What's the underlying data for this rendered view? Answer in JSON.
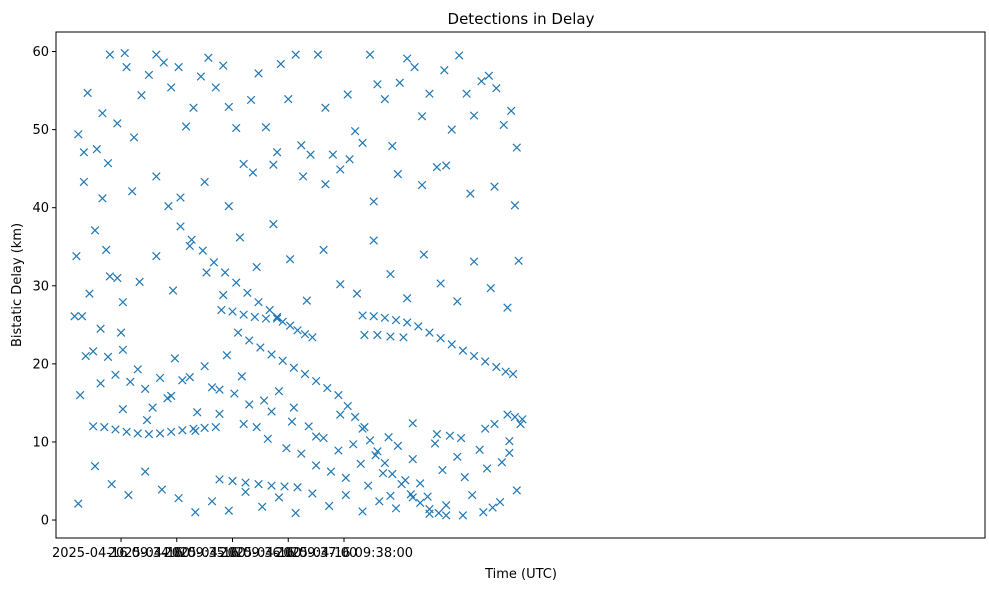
{
  "chart_data": {
    "type": "scatter",
    "title": "Detections in Delay",
    "xlabel": "Time (UTC)",
    "ylabel": "Bistatic Delay (km)",
    "marker": "x",
    "color": "#1f77b4",
    "grid": false,
    "x_unit": "seconds after 2025-04-16 09:32:50 UTC",
    "xlim": [
      0,
      1000
    ],
    "ylim": [
      -2.3,
      62.5
    ],
    "x_ticks": [
      {
        "value": 70,
        "label": "2025-04-16 09:34:00"
      },
      {
        "value": 130,
        "label": "2025-04-16 09:35:00"
      },
      {
        "value": 190,
        "label": "2025-04-16 09:36:00"
      },
      {
        "value": 250,
        "label": "2025-04-16 09:37:00"
      },
      {
        "value": 310,
        "label": "2025-04-16 09:38:00"
      }
    ],
    "y_ticks": [
      0,
      10,
      20,
      30,
      40,
      50,
      60
    ],
    "series": [
      {
        "values": [
          [
            121,
            40.2
          ],
          [
            134,
            37.6
          ],
          [
            146,
            35.9
          ],
          [
            158,
            34.5
          ],
          [
            170,
            33.0
          ],
          [
            182,
            31.7
          ],
          [
            194,
            30.4
          ],
          [
            206,
            29.1
          ],
          [
            218,
            27.9
          ],
          [
            230,
            26.9
          ],
          [
            238,
            26.0
          ],
          [
            244,
            25.4
          ],
          [
            252,
            24.9
          ],
          [
            260,
            24.3
          ],
          [
            268,
            23.8
          ],
          [
            276,
            23.4
          ],
          [
            178,
            26.9
          ],
          [
            190,
            26.7
          ],
          [
            202,
            26.3
          ],
          [
            214,
            26.0
          ],
          [
            226,
            25.8
          ],
          [
            238,
            25.8
          ],
          [
            196,
            24.0
          ],
          [
            208,
            23.0
          ],
          [
            220,
            22.1
          ],
          [
            232,
            21.2
          ],
          [
            244,
            20.4
          ],
          [
            256,
            19.5
          ],
          [
            268,
            18.7
          ],
          [
            280,
            17.8
          ],
          [
            292,
            16.9
          ],
          [
            304,
            16.0
          ],
          [
            314,
            14.6
          ],
          [
            322,
            13.2
          ],
          [
            330,
            11.7
          ],
          [
            338,
            10.2
          ],
          [
            346,
            8.8
          ],
          [
            354,
            7.3
          ],
          [
            362,
            5.9
          ],
          [
            372,
            4.6
          ],
          [
            382,
            3.3
          ],
          [
            392,
            2.2
          ],
          [
            402,
            1.4
          ],
          [
            412,
            0.9
          ],
          [
            420,
            0.6
          ],
          [
            330,
            26.2
          ],
          [
            342,
            26.1
          ],
          [
            354,
            25.9
          ],
          [
            366,
            25.6
          ],
          [
            378,
            25.3
          ],
          [
            390,
            24.8
          ],
          [
            402,
            24.0
          ],
          [
            414,
            23.3
          ],
          [
            426,
            22.5
          ],
          [
            438,
            21.7
          ],
          [
            450,
            21.0
          ],
          [
            462,
            20.3
          ],
          [
            474,
            19.6
          ],
          [
            484,
            19.0
          ],
          [
            492,
            18.7
          ],
          [
            332,
            23.7
          ],
          [
            346,
            23.7
          ],
          [
            360,
            23.5
          ],
          [
            374,
            23.4
          ],
          [
            40,
            12.0
          ],
          [
            52,
            11.9
          ],
          [
            64,
            11.6
          ],
          [
            76,
            11.3
          ],
          [
            88,
            11.1
          ],
          [
            100,
            11.0
          ],
          [
            112,
            11.1
          ],
          [
            124,
            11.3
          ],
          [
            136,
            11.5
          ],
          [
            148,
            11.7
          ],
          [
            160,
            11.8
          ],
          [
            172,
            11.9
          ],
          [
            176,
            5.2
          ],
          [
            190,
            5.0
          ],
          [
            204,
            4.8
          ],
          [
            218,
            4.6
          ],
          [
            232,
            4.4
          ],
          [
            246,
            4.3
          ],
          [
            260,
            4.2
          ],
          [
            460,
            1.0
          ],
          [
            470,
            1.6
          ],
          [
            478,
            2.3
          ],
          [
            486,
            13.5
          ],
          [
            494,
            13.2
          ],
          [
            502,
            12.9
          ],
          [
            500,
            12.3
          ],
          [
            20,
            26.1
          ],
          [
            28,
            26.1
          ],
          [
            50,
            41.2
          ],
          [
            58,
            31.2
          ],
          [
            66,
            31.0
          ],
          [
            70,
            24.0
          ],
          [
            22,
            33.8
          ],
          [
            24,
            49.4
          ],
          [
            30,
            47.1
          ],
          [
            34,
            54.7
          ],
          [
            42,
            37.1
          ],
          [
            44,
            47.5
          ],
          [
            50,
            52.1
          ],
          [
            58,
            59.6
          ],
          [
            66,
            50.8
          ],
          [
            74,
            59.8
          ],
          [
            76,
            58.0
          ],
          [
            84,
            49.0
          ],
          [
            92,
            54.4
          ],
          [
            100,
            57.0
          ],
          [
            108,
            59.6
          ],
          [
            116,
            58.6
          ],
          [
            124,
            55.4
          ],
          [
            132,
            58.0
          ],
          [
            140,
            50.4
          ],
          [
            148,
            52.8
          ],
          [
            156,
            56.8
          ],
          [
            164,
            59.2
          ],
          [
            172,
            55.4
          ],
          [
            180,
            58.2
          ],
          [
            186,
            52.9
          ],
          [
            194,
            50.2
          ],
          [
            202,
            45.6
          ],
          [
            210,
            53.8
          ],
          [
            218,
            57.2
          ],
          [
            226,
            50.3
          ],
          [
            234,
            45.5
          ],
          [
            242,
            58.4
          ],
          [
            250,
            53.9
          ],
          [
            258,
            59.6
          ],
          [
            266,
            44.0
          ],
          [
            274,
            46.8
          ],
          [
            282,
            59.6
          ],
          [
            290,
            52.8
          ],
          [
            298,
            46.8
          ],
          [
            306,
            44.9
          ],
          [
            314,
            54.5
          ],
          [
            322,
            49.8
          ],
          [
            330,
            48.3
          ],
          [
            338,
            59.6
          ],
          [
            346,
            55.8
          ],
          [
            354,
            53.9
          ],
          [
            362,
            47.9
          ],
          [
            370,
            56.0
          ],
          [
            378,
            59.1
          ],
          [
            386,
            58.0
          ],
          [
            394,
            51.7
          ],
          [
            402,
            54.6
          ],
          [
            410,
            45.2
          ],
          [
            418,
            57.6
          ],
          [
            426,
            50.0
          ],
          [
            434,
            59.5
          ],
          [
            442,
            54.6
          ],
          [
            450,
            51.8
          ],
          [
            458,
            56.2
          ],
          [
            466,
            56.9
          ],
          [
            474,
            55.3
          ],
          [
            482,
            50.6
          ],
          [
            490,
            52.4
          ],
          [
            496,
            47.7
          ],
          [
            32,
            21.0
          ],
          [
            40,
            21.6
          ],
          [
            48,
            24.5
          ],
          [
            56,
            20.9
          ],
          [
            64,
            18.6
          ],
          [
            72,
            21.8
          ],
          [
            80,
            17.7
          ],
          [
            88,
            19.3
          ],
          [
            96,
            16.8
          ],
          [
            104,
            14.4
          ],
          [
            112,
            18.2
          ],
          [
            120,
            15.6
          ],
          [
            128,
            20.7
          ],
          [
            136,
            17.9
          ],
          [
            144,
            18.3
          ],
          [
            152,
            13.8
          ],
          [
            160,
            19.7
          ],
          [
            168,
            17.0
          ],
          [
            176,
            13.6
          ],
          [
            184,
            21.1
          ],
          [
            192,
            16.2
          ],
          [
            200,
            18.4
          ],
          [
            208,
            14.8
          ],
          [
            216,
            11.9
          ],
          [
            224,
            15.3
          ],
          [
            232,
            13.9
          ],
          [
            240,
            16.5
          ],
          [
            248,
            9.2
          ],
          [
            256,
            14.4
          ],
          [
            264,
            8.5
          ],
          [
            272,
            12.0
          ],
          [
            280,
            7.0
          ],
          [
            288,
            10.5
          ],
          [
            296,
            6.2
          ],
          [
            304,
            8.9
          ],
          [
            312,
            5.4
          ],
          [
            320,
            9.7
          ],
          [
            328,
            7.2
          ],
          [
            336,
            4.4
          ],
          [
            344,
            8.3
          ],
          [
            352,
            6.0
          ],
          [
            360,
            3.1
          ],
          [
            368,
            9.5
          ],
          [
            376,
            5.1
          ],
          [
            384,
            7.8
          ],
          [
            392,
            4.7
          ],
          [
            400,
            3.0
          ],
          [
            408,
            9.8
          ],
          [
            416,
            6.4
          ],
          [
            424,
            10.8
          ],
          [
            432,
            8.1
          ],
          [
            440,
            5.5
          ],
          [
            448,
            3.2
          ],
          [
            456,
            9.0
          ],
          [
            464,
            6.6
          ],
          [
            472,
            12.3
          ],
          [
            480,
            7.4
          ],
          [
            488,
            8.6
          ],
          [
            496,
            3.8
          ],
          [
            24,
            2.1
          ],
          [
            42,
            6.9
          ],
          [
            60,
            4.6
          ],
          [
            78,
            3.2
          ],
          [
            96,
            6.2
          ],
          [
            114,
            3.9
          ],
          [
            132,
            2.8
          ],
          [
            150,
            1.0
          ],
          [
            168,
            2.4
          ],
          [
            186,
            1.2
          ],
          [
            204,
            3.6
          ],
          [
            222,
            1.7
          ],
          [
            240,
            2.9
          ],
          [
            258,
            0.9
          ],
          [
            276,
            3.4
          ],
          [
            294,
            1.8
          ],
          [
            312,
            3.2
          ],
          [
            330,
            1.1
          ],
          [
            348,
            2.4
          ],
          [
            366,
            1.5
          ],
          [
            384,
            2.9
          ],
          [
            402,
            0.8
          ],
          [
            420,
            1.9
          ],
          [
            438,
            0.6
          ],
          [
            26,
            16.0
          ],
          [
            48,
            17.5
          ],
          [
            72,
            14.2
          ],
          [
            98,
            12.8
          ],
          [
            124,
            15.9
          ],
          [
            150,
            11.4
          ],
          [
            176,
            16.7
          ],
          [
            202,
            12.3
          ],
          [
            228,
            10.4
          ],
          [
            254,
            12.6
          ],
          [
            280,
            10.7
          ],
          [
            306,
            13.5
          ],
          [
            332,
            11.9
          ],
          [
            358,
            10.6
          ],
          [
            384,
            12.4
          ],
          [
            410,
            11.0
          ],
          [
            436,
            10.5
          ],
          [
            462,
            11.7
          ],
          [
            488,
            10.1
          ],
          [
            36,
            29.0
          ],
          [
            54,
            34.6
          ],
          [
            72,
            27.9
          ],
          [
            90,
            30.5
          ],
          [
            108,
            33.8
          ],
          [
            126,
            29.4
          ],
          [
            144,
            35.1
          ],
          [
            162,
            31.7
          ],
          [
            180,
            28.8
          ],
          [
            198,
            36.2
          ],
          [
            216,
            32.4
          ],
          [
            234,
            37.9
          ],
          [
            252,
            33.4
          ],
          [
            270,
            28.1
          ],
          [
            288,
            34.6
          ],
          [
            306,
            30.2
          ],
          [
            324,
            29.0
          ],
          [
            342,
            35.8
          ],
          [
            360,
            31.5
          ],
          [
            378,
            28.4
          ],
          [
            396,
            34.0
          ],
          [
            414,
            30.3
          ],
          [
            432,
            28.0
          ],
          [
            450,
            33.1
          ],
          [
            468,
            29.7
          ],
          [
            486,
            27.2
          ],
          [
            498,
            33.2
          ],
          [
            30,
            43.3
          ],
          [
            56,
            45.7
          ],
          [
            82,
            42.1
          ],
          [
            108,
            44.0
          ],
          [
            134,
            41.3
          ],
          [
            160,
            43.3
          ],
          [
            186,
            40.2
          ],
          [
            212,
            44.5
          ],
          [
            238,
            47.1
          ],
          [
            264,
            48.0
          ],
          [
            290,
            43.0
          ],
          [
            316,
            46.2
          ],
          [
            342,
            40.8
          ],
          [
            368,
            44.3
          ],
          [
            394,
            42.9
          ],
          [
            420,
            45.4
          ],
          [
            446,
            41.8
          ],
          [
            472,
            42.7
          ],
          [
            494,
            40.3
          ]
        ]
      }
    ]
  }
}
